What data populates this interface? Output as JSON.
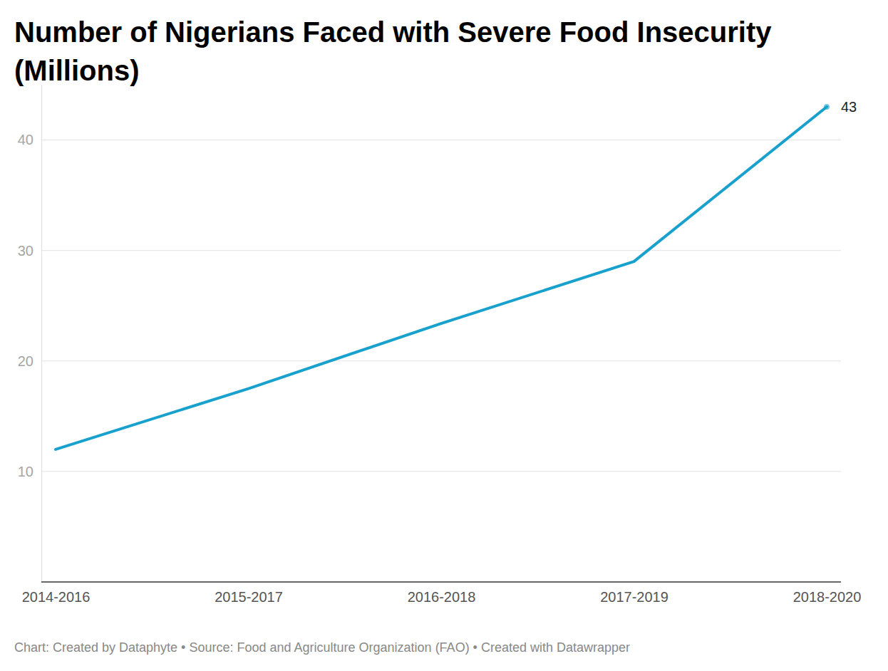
{
  "chart_data": {
    "type": "line",
    "title": "Number of Nigerians Faced with Severe Food Insecurity (Millions)",
    "source": "Chart: Created by Dataphyte • Source: Food and Agriculture Organization (FAO) • Created with Datawrapper",
    "categories": [
      "2014-2016",
      "2015-2017",
      "2016-2018",
      "2017-2019",
      "2018-2020"
    ],
    "values": [
      12,
      17.5,
      23.4,
      29,
      43
    ],
    "value_labels": [
      null,
      null,
      null,
      null,
      "43"
    ],
    "data_labels": true,
    "color": "#18a1cd",
    "ylim": [
      0,
      45
    ],
    "yticks": [
      10,
      20,
      30,
      40
    ],
    "grid": true
  }
}
